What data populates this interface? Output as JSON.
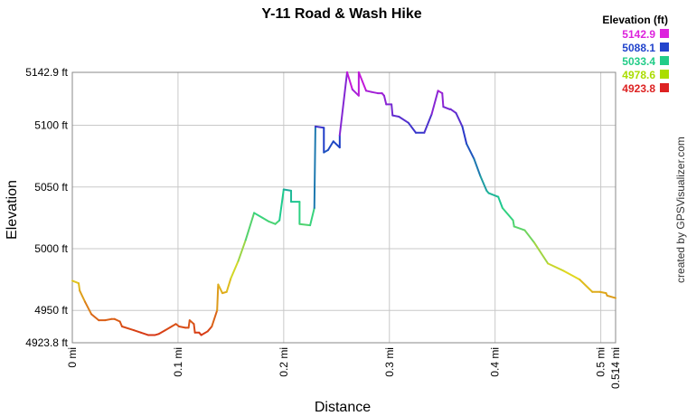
{
  "chart_data": {
    "type": "line",
    "title": "Y-11 Road & Wash Hike",
    "xlabel": "Distance",
    "ylabel": "Elevation",
    "xlim": [
      0,
      0.514
    ],
    "ylim": [
      4923.8,
      5142.9
    ],
    "grid": true,
    "x_ticks": [
      {
        "value": 0,
        "label": "0 mi"
      },
      {
        "value": 0.1,
        "label": "0.1 mi"
      },
      {
        "value": 0.2,
        "label": "0.2 mi"
      },
      {
        "value": 0.3,
        "label": "0.3 mi"
      },
      {
        "value": 0.4,
        "label": "0.4 mi"
      },
      {
        "value": 0.5,
        "label": "0.5 mi"
      },
      {
        "value": 0.514,
        "label": "0.514 mi"
      }
    ],
    "y_ticks": [
      {
        "value": 4923.8,
        "label": "4923.8 ft"
      },
      {
        "value": 4950,
        "label": "4950 ft"
      },
      {
        "value": 5000,
        "label": "5000 ft"
      },
      {
        "value": 5050,
        "label": "5050 ft"
      },
      {
        "value": 5100,
        "label": "5100 ft"
      },
      {
        "value": 5142.9,
        "label": "5142.9 ft"
      }
    ],
    "legend": {
      "title": "Elevation (ft)",
      "placement": "top-right",
      "entries": [
        {
          "label": "5142.9",
          "color": "#dd22dd"
        },
        {
          "label": "5088.1",
          "color": "#2244cc"
        },
        {
          "label": "5033.4",
          "color": "#22cc88"
        },
        {
          "label": "4978.6",
          "color": "#aadd00"
        },
        {
          "label": "4923.8",
          "color": "#dd2222"
        }
      ]
    },
    "series": [
      {
        "x": [
          0,
          0.006,
          0.007,
          0.012,
          0.018,
          0.025,
          0.031,
          0.037,
          0.04,
          0.045,
          0.047,
          0.058,
          0.065,
          0.072,
          0.078,
          0.082,
          0.088,
          0.094,
          0.098,
          0.101,
          0.107,
          0.11,
          0.111,
          0.115,
          0.116,
          0.12,
          0.122,
          0.128,
          0.132,
          0.137,
          0.138,
          0.142,
          0.146,
          0.15,
          0.157,
          0.164,
          0.172,
          0.18,
          0.186,
          0.192,
          0.196,
          0.2,
          0.2,
          0.207,
          0.207,
          0.215,
          0.215,
          0.225,
          0.229,
          0.23,
          0.23,
          0.238,
          0.238,
          0.242,
          0.247,
          0.253,
          0.253,
          0.26,
          0.265,
          0.271,
          0.271,
          0.278,
          0.283,
          0.289,
          0.293,
          0.295,
          0.297,
          0.302,
          0.303,
          0.309,
          0.318,
          0.325,
          0.333,
          0.34,
          0.346,
          0.35,
          0.351,
          0.357,
          0.358,
          0.363,
          0.369,
          0.373,
          0.38,
          0.386,
          0.392,
          0.394,
          0.403,
          0.407,
          0.417,
          0.418,
          0.428,
          0.437,
          0.45,
          0.465,
          0.48,
          0.492,
          0.499,
          0.505,
          0.506,
          0.514
        ],
        "values": [
          4974,
          4972,
          4966,
          4957,
          4947,
          4942,
          4942,
          4943,
          4943,
          4941,
          4937,
          4934,
          4932,
          4930,
          4930,
          4931,
          4934,
          4937,
          4939,
          4937,
          4936,
          4936,
          4942,
          4939,
          4932,
          4932,
          4930,
          4933,
          4937,
          4950,
          4971,
          4964,
          4965,
          4976,
          4990,
          5007,
          5029,
          5025,
          5022,
          5020,
          5023,
          5048,
          5048,
          5047,
          5038,
          5038,
          5020,
          5019,
          5033,
          5099,
          5099,
          5098,
          5078,
          5080,
          5087,
          5082,
          5092,
          5143,
          5129,
          5124,
          5143,
          5128,
          5127,
          5126,
          5126,
          5124,
          5117,
          5117,
          5108,
          5107,
          5102,
          5094,
          5094,
          5109,
          5128,
          5126,
          5115,
          5113,
          5113,
          5110,
          5099,
          5085,
          5073,
          5059,
          5047,
          5045,
          5042,
          5033,
          5023,
          5018,
          5015,
          5005,
          4988,
          4982,
          4975,
          4965,
          4965,
          4964,
          4962,
          4960
        ]
      }
    ],
    "credit": "created by GPSVisualizer.com"
  }
}
